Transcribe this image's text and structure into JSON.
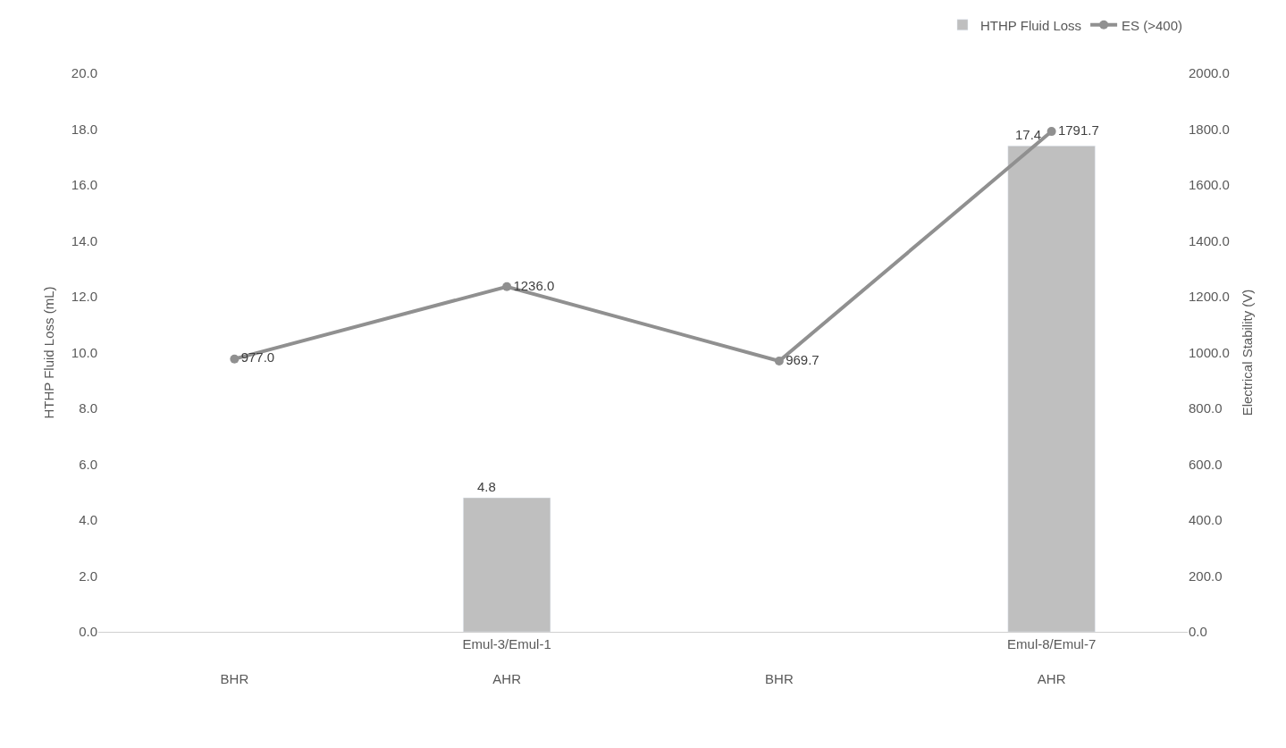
{
  "chart_data": {
    "type": "bar",
    "categories": [
      "BHR",
      "Emul-3/Emul-1\nAHR",
      "BHR",
      "Emul-8/Emul-7\nAHR"
    ],
    "series": [
      {
        "name": "HTHP Fluid Loss",
        "color": "#bfbfbf",
        "values": [
          null,
          4.8,
          null,
          17.4
        ],
        "value_labels": [
          null,
          "4.8",
          null,
          "17.4"
        ]
      },
      {
        "name": "ES (>400)",
        "type": "line",
        "axis": "y2",
        "color": "#909090",
        "marker": "circle",
        "line_style": "solid",
        "values": [
          977.0,
          1236.0,
          969.7,
          1791.7
        ],
        "value_labels": [
          "977.0",
          "1236.0",
          "969.7",
          "1791.7"
        ]
      }
    ],
    "ylabel": "HTHP Fluid Loss (mL)",
    "y2label": "Electrical Stability (V)",
    "ylim": [
      0,
      20
    ],
    "yticks": [
      {
        "value": 0,
        "label": "0.0"
      },
      {
        "value": 2,
        "label": "2.0"
      },
      {
        "value": 4,
        "label": "4.0"
      },
      {
        "value": 6,
        "label": "6.0"
      },
      {
        "value": 8,
        "label": "8.0"
      },
      {
        "value": 10,
        "label": "10.0"
      },
      {
        "value": 12,
        "label": "12.0"
      },
      {
        "value": 14,
        "label": "14.0"
      },
      {
        "value": 16,
        "label": "16.0"
      },
      {
        "value": 18,
        "label": "18.0"
      },
      {
        "value": 20,
        "label": "20.0"
      }
    ],
    "y2lim": [
      0,
      2000
    ],
    "y2ticks": [
      {
        "value": 0,
        "label": "0.0"
      },
      {
        "value": 200,
        "label": "200.0"
      },
      {
        "value": 400,
        "label": "400.0"
      },
      {
        "value": 600,
        "label": "600.0"
      },
      {
        "value": 800,
        "label": "800.0"
      },
      {
        "value": 1000,
        "label": "1000.0"
      },
      {
        "value": 1200,
        "label": "1200.0"
      },
      {
        "value": 1400,
        "label": "1400.0"
      },
      {
        "value": 1600,
        "label": "1600.0"
      },
      {
        "value": 1800,
        "label": "1800.0"
      },
      {
        "value": 2000,
        "label": "2000.0"
      }
    ],
    "legend": "top right"
  }
}
